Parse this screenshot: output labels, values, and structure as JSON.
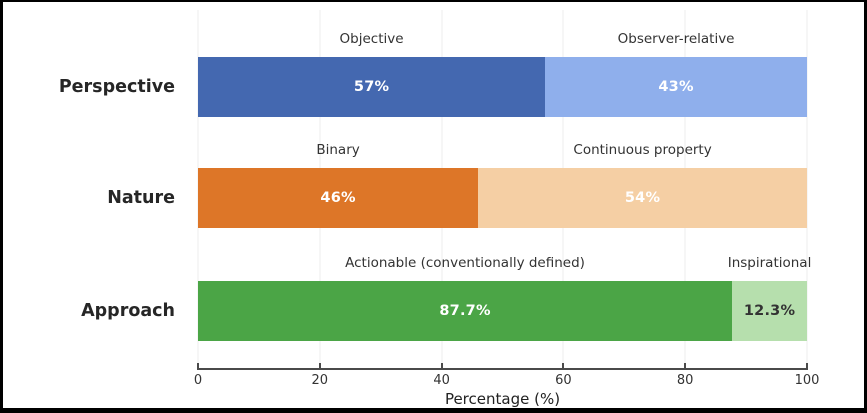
{
  "chart_data": {
    "type": "bar",
    "orientation": "horizontal",
    "stacked": true,
    "title": "",
    "xlabel": "Percentage (%)",
    "xlim": [
      0,
      100
    ],
    "x_ticks": [
      0,
      20,
      40,
      60,
      80,
      100
    ],
    "grid": true,
    "categories": [
      "Perspective",
      "Nature",
      "Approach"
    ],
    "rows": [
      {
        "category": "Perspective",
        "segments": [
          {
            "label": "Objective",
            "value": 57,
            "display": "57%",
            "color": "#4468b0",
            "text_color": "#ffffff"
          },
          {
            "label": "Observer-relative",
            "value": 43,
            "display": "43%",
            "color": "#8fafec",
            "text_color": "#ffffff"
          }
        ]
      },
      {
        "category": "Nature",
        "segments": [
          {
            "label": "Binary",
            "value": 46,
            "display": "46%",
            "color": "#dd7628",
            "text_color": "#ffffff"
          },
          {
            "label": "Continuous property",
            "value": 54,
            "display": "54%",
            "color": "#f5cfa4",
            "text_color": "#ffffff"
          }
        ]
      },
      {
        "category": "Approach",
        "segments": [
          {
            "label": "Actionable (conventionally defined)",
            "value": 87.7,
            "display": "87.7%",
            "color": "#4ba546",
            "text_color": "#ffffff"
          },
          {
            "label": "Inspirational",
            "value": 12.3,
            "display": "12.3%",
            "color": "#b6dfad",
            "text_color": "#333333"
          }
        ]
      }
    ],
    "colors": {
      "axis": "#4a4a4a",
      "grid": "#ececec",
      "segment_label_text": "#333333",
      "category_text": "#262626"
    }
  }
}
